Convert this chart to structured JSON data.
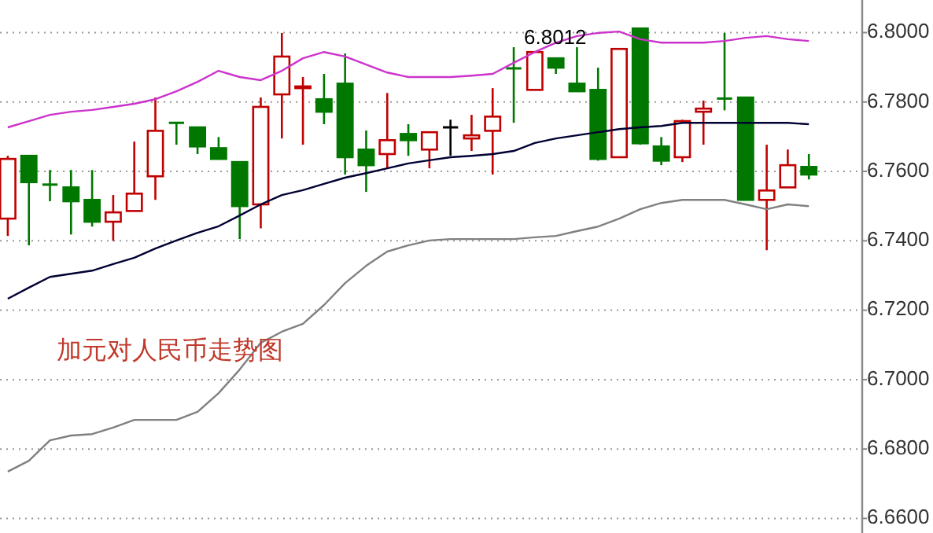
{
  "chart_data": {
    "type": "candlestick",
    "categories": [
      null,
      null,
      null,
      null,
      null,
      null,
      null,
      null,
      null,
      null,
      null,
      null,
      null,
      null,
      null,
      null,
      null,
      null,
      null,
      null,
      null,
      null,
      null,
      null,
      null,
      null,
      null,
      null,
      null,
      null,
      null,
      null,
      null,
      null,
      null,
      null,
      null,
      null,
      null
    ],
    "ohlc": [
      [
        6.7464,
        6.7645,
        6.7414,
        6.7636
      ],
      [
        6.7645,
        6.7645,
        6.7387,
        6.7569
      ],
      [
        6.7562,
        6.7604,
        6.7514,
        6.7558
      ],
      [
        6.7554,
        6.7604,
        6.7418,
        6.7514
      ],
      [
        6.7518,
        6.7604,
        6.7441,
        6.7455
      ],
      [
        6.7455,
        6.7532,
        6.74,
        6.7482
      ],
      [
        6.7486,
        6.7686,
        6.7486,
        6.7536
      ],
      [
        6.7586,
        6.7813,
        6.7518,
        6.7717
      ],
      [
        6.774,
        6.774,
        6.7677,
        6.7736
      ],
      [
        6.7727,
        6.7727,
        6.765,
        6.7672
      ],
      [
        6.7667,
        6.7699,
        6.7636,
        6.7636
      ],
      [
        6.7627,
        6.7627,
        6.7405,
        6.75
      ],
      [
        6.7505,
        6.7813,
        6.7436,
        6.7786
      ],
      [
        6.7822,
        6.7999,
        6.7695,
        6.7931
      ],
      [
        6.784,
        6.7872,
        6.7677,
        6.7845
      ],
      [
        6.7808,
        6.7881,
        6.7736,
        6.7772
      ],
      [
        6.7853,
        6.794,
        6.7591,
        6.7641
      ],
      [
        6.7663,
        6.7718,
        6.7541,
        6.7618
      ],
      [
        6.765,
        6.7826,
        6.7609,
        6.769
      ],
      [
        6.7708,
        6.7736,
        6.7645,
        6.769
      ],
      [
        6.7663,
        6.7713,
        6.7609,
        6.7713
      ],
      [
        6.7727,
        6.7749,
        6.7645,
        6.7727
      ],
      [
        6.7695,
        6.7763,
        6.7659,
        6.7704
      ],
      [
        6.7717,
        6.784,
        6.7591,
        6.7758
      ],
      [
        6.7897,
        6.7958,
        6.774,
        6.7893
      ],
      [
        6.7835,
        6.7944,
        6.7835,
        6.7944
      ],
      [
        6.7926,
        6.7926,
        6.7881,
        6.7899
      ],
      [
        6.7853,
        6.7958,
        6.7831,
        6.7831
      ],
      [
        6.7835,
        6.7899,
        6.7631,
        6.7636
      ],
      [
        6.7641,
        6.7953,
        6.7641,
        6.7953
      ],
      [
        6.8012,
        6.8012,
        6.7677,
        6.7681
      ],
      [
        6.7672,
        6.7699,
        6.7618,
        6.7631
      ],
      [
        6.7641,
        6.7749,
        6.7627,
        6.7745
      ],
      [
        6.7772,
        6.7804,
        6.7677,
        6.7781
      ],
      [
        6.781,
        6.7999,
        6.7776,
        6.7806
      ],
      [
        6.7813,
        6.7813,
        6.7518,
        6.7518
      ],
      [
        6.7518,
        6.7677,
        6.7373,
        6.7545
      ],
      [
        6.7554,
        6.7663,
        6.7554,
        6.7618
      ],
      [
        6.7613,
        6.765,
        6.7577,
        6.7591
      ]
    ],
    "series": [
      {
        "type": "line",
        "color": "#cc33cc",
        "values": [
          6.7727,
          6.7745,
          6.7763,
          6.7772,
          6.7777,
          6.7786,
          6.7795,
          6.7808,
          6.7831,
          6.7858,
          6.789,
          6.7872,
          6.7863,
          6.789,
          6.7926,
          6.7944,
          6.7931,
          6.7908,
          6.7885,
          6.7872,
          6.7872,
          6.7872,
          6.7876,
          6.7881,
          6.7913,
          6.7944,
          6.7971,
          6.799,
          6.7999,
          6.8003,
          6.7981,
          6.7971,
          6.7971,
          6.7971,
          6.7976,
          6.7985,
          6.799,
          6.7981,
          6.7976
        ]
      },
      {
        "type": "line",
        "color": "#000033",
        "values": [
          6.7233,
          6.7265,
          6.7296,
          6.7305,
          6.7314,
          6.7333,
          6.7351,
          6.7378,
          6.7401,
          6.7423,
          6.7442,
          6.7473,
          6.7505,
          6.7532,
          6.7546,
          6.7564,
          6.7582,
          6.7595,
          6.7609,
          6.7623,
          6.7632,
          6.7641,
          6.7645,
          6.765,
          6.7659,
          6.7682,
          6.7695,
          6.7704,
          6.7713,
          6.7722,
          6.7727,
          6.7731,
          6.774,
          6.774,
          6.774,
          6.774,
          6.774,
          6.774,
          6.7736
        ]
      },
      {
        "type": "line",
        "color": "#808080",
        "values": [
          6.6735,
          6.6766,
          6.6825,
          6.6839,
          6.6843,
          6.6862,
          6.6884,
          6.6884,
          6.6884,
          6.6907,
          6.6961,
          6.7029,
          6.7106,
          6.7138,
          6.7161,
          6.7215,
          6.7278,
          6.7328,
          6.7369,
          6.7387,
          6.7401,
          6.7405,
          6.7405,
          6.7405,
          6.7405,
          6.741,
          6.7414,
          6.7428,
          6.7441,
          6.7464,
          6.7491,
          6.7509,
          6.7518,
          6.7518,
          6.7518,
          6.7505,
          6.7491,
          6.7505,
          6.75
        ]
      }
    ],
    "ylim": [
      6.6558,
      6.8094
    ],
    "yticks": [
      {
        "value": 6.66,
        "label": "6.6600"
      },
      {
        "value": 6.68,
        "label": "6.6800"
      },
      {
        "value": 6.7,
        "label": "6.7000"
      },
      {
        "value": 6.72,
        "label": "6.7200"
      },
      {
        "value": 6.74,
        "label": "6.7400"
      },
      {
        "value": 6.76,
        "label": "6.7600"
      },
      {
        "value": 6.78,
        "label": "6.7800"
      },
      {
        "value": 6.8,
        "label": "6.8000"
      }
    ],
    "grid": "y",
    "annotations": [
      "6.8012",
      "加元对人民币走势图"
    ]
  }
}
